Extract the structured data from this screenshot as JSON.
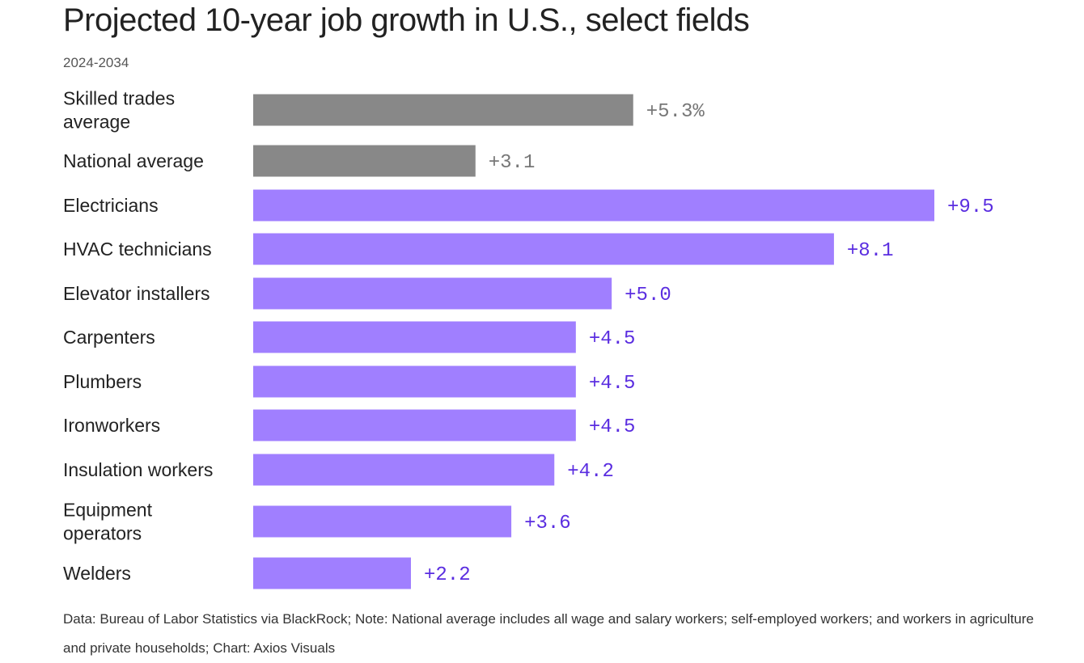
{
  "chart_data": {
    "type": "bar",
    "orientation": "horizontal",
    "title": "Projected 10-year job growth in U.S., select fields",
    "subtitle": "2024-2034",
    "categories": [
      [
        "Skilled trades",
        "average"
      ],
      [
        "National average"
      ],
      [
        "Electricians"
      ],
      [
        "HVAC technicians"
      ],
      [
        "Elevator installers"
      ],
      [
        "Carpenters"
      ],
      [
        "Plumbers"
      ],
      [
        "Ironworkers"
      ],
      [
        "Insulation workers"
      ],
      [
        "Equipment",
        "operators"
      ],
      [
        "Welders"
      ]
    ],
    "values": [
      5.3,
      3.1,
      9.5,
      8.1,
      5.0,
      4.5,
      4.5,
      4.5,
      4.2,
      3.6,
      2.2
    ],
    "labels": [
      "+5.3%",
      "+3.1",
      "+9.5",
      "+8.1",
      "+5.0",
      "+4.5",
      "+4.5",
      "+4.5",
      "+4.2",
      "+3.6",
      "+2.2"
    ],
    "highlight": [
      "benchmark",
      "benchmark",
      "field",
      "field",
      "field",
      "field",
      "field",
      "field",
      "field",
      "field",
      "field"
    ],
    "colors": {
      "benchmark_bar": "#888888",
      "benchmark_label": "#777777",
      "field_bar": "#a07fff",
      "field_label": "#5a2de0"
    },
    "unit": "%",
    "xlim": [
      0,
      9.5
    ],
    "xlabel": "",
    "ylabel": "",
    "grid": false
  },
  "footnote": "Data: Bureau of Labor Statistics via BlackRock; Note: National average includes all wage and salary workers; self-employed workers; and workers in agriculture and private households; Chart: Axios Visuals"
}
